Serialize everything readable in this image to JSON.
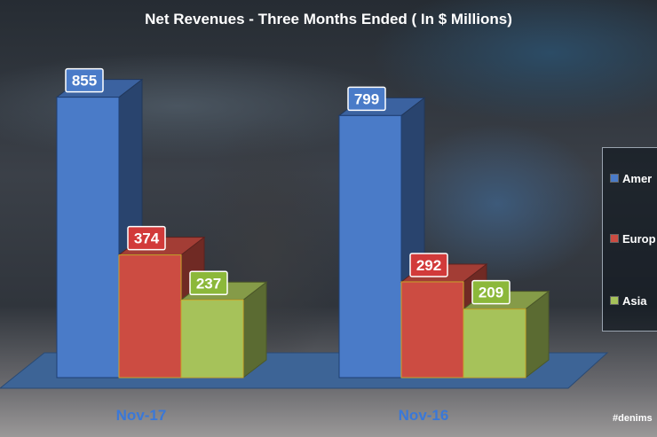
{
  "watermark": "#denims",
  "chart_data": {
    "type": "bar",
    "title": "Net Revenues - Three Months Ended ( In $ Millions)",
    "categories": [
      "Nov-17",
      "Nov-16"
    ],
    "series": [
      {
        "name": "Amer",
        "values": [
          855,
          799
        ],
        "color": "#4a7bc8"
      },
      {
        "name": "Europ",
        "values": [
          374,
          292
        ],
        "color": "#cc4c42"
      },
      {
        "name": "Asia",
        "values": [
          237,
          209
        ],
        "color": "#a6c25a"
      }
    ],
    "ylim": [
      0,
      1000
    ],
    "grid": false,
    "legend_position": "right",
    "data_labels": true,
    "three_d": true
  }
}
